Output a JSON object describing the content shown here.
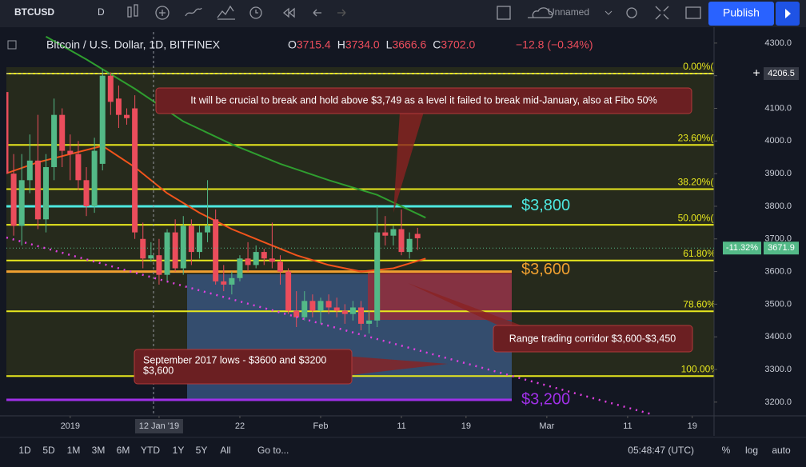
{
  "toolbar": {
    "symbol": "BTCUSD",
    "interval": "D",
    "layout": "Unnamed",
    "publish": "Publish"
  },
  "header": {
    "title": "Bitcoin / U.S. Dollar, 1D, BITFINEX",
    "ohlc": [
      {
        "key": "O",
        "text": "3715.4"
      },
      {
        "key": "H",
        "text": "3734.0"
      },
      {
        "key": "L",
        "text": "3666.6"
      },
      {
        "key": "C",
        "text": "3702.0"
      }
    ],
    "change": "−12.8 (−0.34%)"
  },
  "chart_data": {
    "type": "candlestick",
    "xlim": [
      -7.9,
      79.7
    ],
    "ylim": [
      3158,
      4334
    ],
    "yticks": [
      {
        "value": 4300,
        "label": "4300.0"
      },
      {
        "value": 4200,
        "label": "4200.0"
      },
      {
        "value": 4100,
        "label": "4100.0"
      },
      {
        "value": 4000,
        "label": "4000.0"
      },
      {
        "value": 3900,
        "label": "3900.0"
      },
      {
        "value": 3800,
        "label": "3800.0"
      },
      {
        "value": 3700,
        "label": "3700.0"
      },
      {
        "value": 3600,
        "label": "3600.0"
      },
      {
        "value": 3500,
        "label": "3500.0"
      },
      {
        "value": 3400,
        "label": "3400.0"
      },
      {
        "value": 3300,
        "label": "3300.0"
      },
      {
        "value": 3200,
        "label": "3200.0"
      }
    ],
    "xticks": [
      {
        "value": 0,
        "label": "2019"
      },
      {
        "value": 11,
        "label": "12 Jan '19"
      },
      {
        "value": 21,
        "label": "22"
      },
      {
        "value": 31,
        "label": "Feb"
      },
      {
        "value": 41,
        "label": "11"
      },
      {
        "value": 49,
        "label": "19"
      },
      {
        "value": 59,
        "label": "Mar"
      },
      {
        "value": 69,
        "label": "11"
      },
      {
        "value": 77,
        "label": "19"
      }
    ],
    "up_color": "#53b987",
    "down_color": "#eb4d5c",
    "x": [
      -8,
      -7,
      -6,
      -5,
      -4,
      -3,
      -2,
      -1,
      0,
      1,
      2,
      3,
      4,
      5,
      6,
      7,
      8,
      9,
      10,
      11,
      12,
      13,
      14,
      15,
      16,
      17,
      18,
      19,
      20,
      21,
      22,
      23,
      24,
      25,
      26,
      27,
      28,
      29,
      30,
      31,
      32,
      33,
      34,
      35,
      36,
      37,
      38,
      39,
      40,
      41,
      42,
      43
    ],
    "open": [
      4150,
      3900,
      3740,
      3880,
      3940,
      3760,
      3920,
      4080,
      3970,
      3960,
      3880,
      3800,
      3930,
      4200,
      4130,
      4080,
      4100,
      3700,
      3640,
      3650,
      3590,
      3720,
      3610,
      3740,
      3660,
      3720,
      3760,
      3570,
      3560,
      3580,
      3640,
      3620,
      3660,
      3640,
      3630,
      3600,
      3480,
      3460,
      3510,
      3480,
      3510,
      3490,
      3480,
      3470,
      3490,
      3440,
      3450,
      3720,
      3710,
      3730,
      3660,
      3715.4
    ],
    "high": [
      4240,
      3960,
      3960,
      4020,
      4080,
      3960,
      4130,
      4100,
      4020,
      4000,
      3920,
      4010,
      4220,
      4210,
      4170,
      4100,
      4140,
      3750,
      3690,
      3700,
      3730,
      3760,
      3770,
      3760,
      3740,
      3880,
      3790,
      3620,
      3600,
      3650,
      3690,
      3680,
      3670,
      3750,
      3650,
      3610,
      3540,
      3540,
      3530,
      3520,
      3530,
      3520,
      3500,
      3510,
      3510,
      3480,
      3800,
      3770,
      3740,
      3790,
      3720,
      3734
    ],
    "low": [
      3870,
      3710,
      3680,
      3840,
      3730,
      3720,
      3880,
      3920,
      3880,
      3850,
      3770,
      3780,
      3910,
      4080,
      4040,
      4050,
      3700,
      3610,
      3630,
      3560,
      3570,
      3600,
      3590,
      3620,
      3640,
      3690,
      3560,
      3540,
      3530,
      3570,
      3600,
      3610,
      3620,
      3610,
      3560,
      3470,
      3430,
      3450,
      3460,
      3440,
      3470,
      3460,
      3440,
      3450,
      3420,
      3410,
      3430,
      3680,
      3680,
      3650,
      3640,
      3666.6
    ],
    "close": [
      3900,
      3740,
      3880,
      3940,
      3760,
      3920,
      4080,
      3970,
      3960,
      3880,
      3800,
      3970,
      4200,
      4120,
      4080,
      4070,
      3720,
      3640,
      3650,
      3590,
      3720,
      3610,
      3740,
      3660,
      3720,
      3740,
      3570,
      3560,
      3580,
      3640,
      3620,
      3660,
      3640,
      3630,
      3600,
      3480,
      3460,
      3510,
      3480,
      3510,
      3490,
      3480,
      3470,
      3490,
      3440,
      3450,
      3720,
      3710,
      3730,
      3660,
      3700,
      3702
    ],
    "series": [
      {
        "color": "#2f9e2f",
        "x": [
          -3,
          2,
          8,
          14,
          20,
          26,
          32,
          38,
          44
        ],
        "values": [
          4320,
          4250,
          4160,
          4060,
          3990,
          3930,
          3880,
          3835,
          3765
        ]
      },
      {
        "color": "#f2541b",
        "x": [
          -8,
          -4,
          0,
          4,
          8,
          12,
          16,
          20,
          24,
          28,
          32,
          36,
          40,
          44
        ],
        "values": [
          3900,
          3935,
          3960,
          3985,
          3920,
          3840,
          3780,
          3730,
          3690,
          3650,
          3620,
          3600,
          3610,
          3640
        ]
      }
    ],
    "fib_levels": [
      {
        "value": 4206.5,
        "label": "0.00%(4"
      },
      {
        "value": 3987.8,
        "label": "23.60%(3"
      },
      {
        "value": 3852.6,
        "label": "38.20%(3"
      },
      {
        "value": 3743.3,
        "label": "50.00%(3"
      },
      {
        "value": 3634,
        "label": "61.80%("
      },
      {
        "value": 3478.3,
        "label": "78.60%("
      },
      {
        "value": 3280,
        "label": "100.00%"
      }
    ],
    "fib_color": "#e8e81e",
    "levels": [
      {
        "value": 3800,
        "label": "$3,800",
        "color": "#4de8e0"
      },
      {
        "value": 3600,
        "label": "$3,600",
        "color": "#f0a030"
      },
      {
        "value": 3207,
        "label": "$3,200",
        "color": "#a030e8"
      }
    ],
    "crosshair_price": {
      "value": 4206.5,
      "label": "4206.5"
    },
    "last_price": {
      "value": 3671.9,
      "label": "3671.9",
      "change": "-11.32%"
    }
  },
  "annotations": [
    "It will be crucial to break and hold above $3,749 as a level it failed to break mid-January, also at Fibo 50%",
    "Range trading corridor $3,600-$3,450",
    "September 2017 lows - $3600 and $3200",
    "$3,600"
  ],
  "footer": {
    "ranges": [
      "1D",
      "5D",
      "1M",
      "3M",
      "6M",
      "YTD",
      "1Y",
      "5Y",
      "All"
    ],
    "goto": "Go to...",
    "time": "05:48:47 (UTC)",
    "percent": "%",
    "log": "log",
    "auto": "auto"
  }
}
